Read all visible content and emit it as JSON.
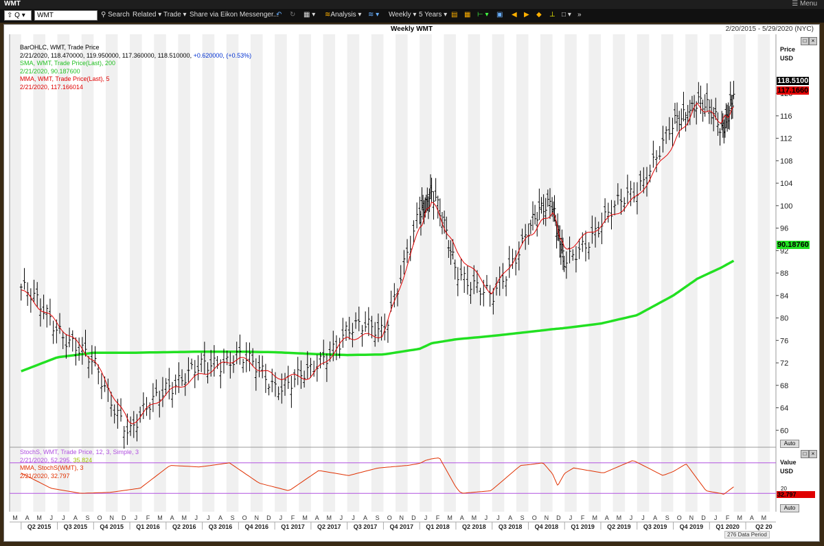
{
  "window": {
    "title": "WMT",
    "menu_label": "Menu"
  },
  "toolbar": {
    "ticker": "WMT",
    "search_label": "Search",
    "related_label": "Related",
    "trade_label": "Trade",
    "share_label": "Share via Eikon Messenger...",
    "analysis_label": "Analysis",
    "interval_label": "Weekly",
    "range_label": "5 Years"
  },
  "chart_header": {
    "title": "Weekly WMT",
    "date_range": "2/20/2015 - 5/29/2020 (NYC)"
  },
  "legend": {
    "line1": "BarOHLC, WMT, Trade Price",
    "line2_prefix": "2/21/2020, 118.470000, 119.950000, 117.360000, 118.510000,",
    "line2_change": "+0.620000, (+0.53%)",
    "sma_title": "SMA, WMT, Trade Price(Last), 200",
    "sma_value": "2/21/2020, 90.187600",
    "mma_title": "MMA, WMT, Trade Price(Last), 5",
    "mma_value": "2/21/2020, 117.166014"
  },
  "stoch_legend": {
    "line1": "StochS, WMT, Trade Price, 12, 3, Simple, 3",
    "line2_prefix": "2/21/2020, 52.295,",
    "line2_alt": "35.824",
    "mma_title": "MMA, StochS(WMT), 3",
    "mma_value": "2/21/2020, 32.797"
  },
  "price_axis": {
    "title": "Price",
    "unit": "USD",
    "auto": "Auto"
  },
  "stoch_axis": {
    "title": "Value",
    "unit": "USD",
    "auto": "Auto"
  },
  "tags": {
    "last": "118.5100",
    "mma": "117.1660",
    "sma": "90.18760",
    "stoch": "32.797",
    "stoch_level": "20"
  },
  "footer": {
    "period": "276 Data Period"
  },
  "colors": {
    "price_bars": "#000000",
    "mma": "#e00000",
    "sma": "#22e022",
    "stoch": "#e03000",
    "bands": "#b050e0"
  },
  "chart_data": {
    "type": "line",
    "title": "Weekly WMT",
    "ylabel": "Price USD",
    "ylim": [
      56,
      126
    ],
    "yticks": [
      60,
      64,
      68,
      72,
      76,
      80,
      84,
      88,
      92,
      96,
      100,
      104,
      108,
      112,
      116,
      120
    ],
    "months": [
      "M",
      "A",
      "M",
      "J",
      "J",
      "A",
      "S",
      "O",
      "N",
      "D",
      "J",
      "F",
      "M",
      "A",
      "M",
      "J",
      "J",
      "A",
      "S",
      "O",
      "N",
      "D",
      "J",
      "F",
      "M",
      "A",
      "M",
      "J",
      "J",
      "A",
      "S",
      "O",
      "N",
      "D",
      "J",
      "F",
      "M",
      "A",
      "M",
      "J",
      "J",
      "A",
      "S",
      "O",
      "N",
      "D",
      "J",
      "F",
      "M",
      "A",
      "M",
      "J",
      "J",
      "A",
      "S",
      "O",
      "N",
      "D",
      "J",
      "F",
      "M",
      "A",
      "M"
    ],
    "quarters": [
      "Q2 2015",
      "Q3 2015",
      "Q4 2015",
      "Q1 2016",
      "Q2 2016",
      "Q3 2016",
      "Q4 2016",
      "Q1 2017",
      "Q2 2017",
      "Q3 2017",
      "Q4 2017",
      "Q1 2018",
      "Q2 2018",
      "Q3 2018",
      "Q4 2018",
      "Q1 2019",
      "Q2 2019",
      "Q3 2019",
      "Q4 2019",
      "Q1 2020",
      "Q2 20"
    ],
    "x": [
      "2015-03",
      "2015-06",
      "2015-09",
      "2015-12",
      "2016-03",
      "2016-06",
      "2016-09",
      "2016-12",
      "2017-03",
      "2017-06",
      "2017-09",
      "2017-12",
      "2018-01",
      "2018-03",
      "2018-06",
      "2018-09",
      "2018-11",
      "2018-12",
      "2019-03",
      "2019-06",
      "2019-09",
      "2019-11",
      "2020-01",
      "2020-02"
    ],
    "series": [
      {
        "name": "WMT, Trade Price",
        "values": [
          85.5,
          78.5,
          71.5,
          59.5,
          68,
          71,
          73.5,
          68,
          70,
          78,
          78,
          98,
          103,
          89,
          83,
          96,
          101,
          89,
          97,
          103,
          114,
          119,
          114,
          118.5
        ]
      },
      {
        "name": "MMA, WMT, Trade Price(Last), 5",
        "values": [
          85,
          79,
          72.5,
          61,
          66.5,
          70,
          73,
          69.5,
          69.5,
          76.5,
          77,
          96,
          101,
          92,
          84.5,
          94.5,
          99,
          92,
          96.5,
          101.5,
          111,
          118,
          115,
          117.17
        ]
      },
      {
        "name": "SMA, WMT, Trade Price(Last), 200",
        "values": [
          70.5,
          73,
          73.8,
          73.8,
          73.9,
          74,
          74,
          73.9,
          73.6,
          73.4,
          73.5,
          74.5,
          75.5,
          76.2,
          76.8,
          77.5,
          78,
          78.2,
          79,
          80.5,
          84,
          87,
          89,
          90.19
        ]
      }
    ],
    "stochastic": {
      "levels": [
        20,
        80
      ],
      "ylim": [
        0,
        100
      ],
      "name": "MMA, StochS(WMT), 3",
      "values": [
        60,
        30,
        20,
        22,
        30,
        75,
        72,
        80,
        40,
        25,
        65,
        55,
        70,
        75,
        85,
        90,
        20,
        25,
        75,
        80,
        35,
        70,
        60,
        85,
        55,
        78,
        25,
        18,
        32.8
      ]
    }
  }
}
